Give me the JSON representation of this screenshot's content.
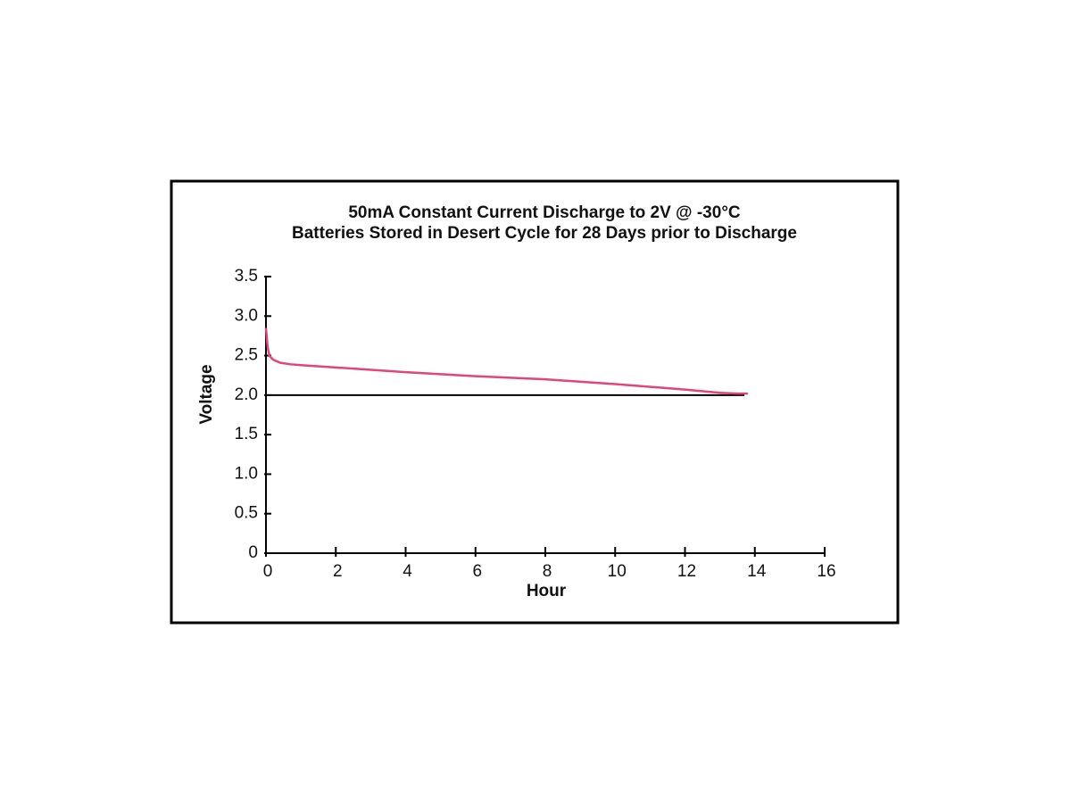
{
  "chart_data": {
    "type": "line",
    "title": "50mA Constant Current Discharge to 2V @ -30°C",
    "subtitle": "Batteries Stored in Desert Cycle for 28 Days prior to Discharge",
    "x_label": "Hour",
    "y_label": "Voltage",
    "xlim": [
      0,
      16
    ],
    "xticks": [
      0,
      2,
      4,
      6,
      8,
      10,
      12,
      14,
      16
    ],
    "ylim": [
      0,
      3.5
    ],
    "yticks": [
      0,
      0.5,
      {
        "value": 1,
        "label": "1.0"
      },
      1.5,
      {
        "value": 2,
        "label": "2.0"
      },
      2.5,
      {
        "value": 3,
        "label": "3.0"
      },
      3.5
    ],
    "reference_line": {
      "y": 2,
      "x": [
        0,
        13.7
      ],
      "color": "#000000"
    },
    "series": [
      {
        "color": "#e0457b",
        "x": [
          0,
          0.05,
          0.1,
          0.2,
          0.4,
          0.7,
          1,
          2,
          4,
          6,
          8,
          10,
          12,
          13,
          13.5,
          13.8
        ],
        "values": [
          2.85,
          2.6,
          2.5,
          2.45,
          2.41,
          2.39,
          2.38,
          2.35,
          2.29,
          2.24,
          2.2,
          2.14,
          2.07,
          2.03,
          2.02,
          2.02
        ]
      }
    ]
  }
}
